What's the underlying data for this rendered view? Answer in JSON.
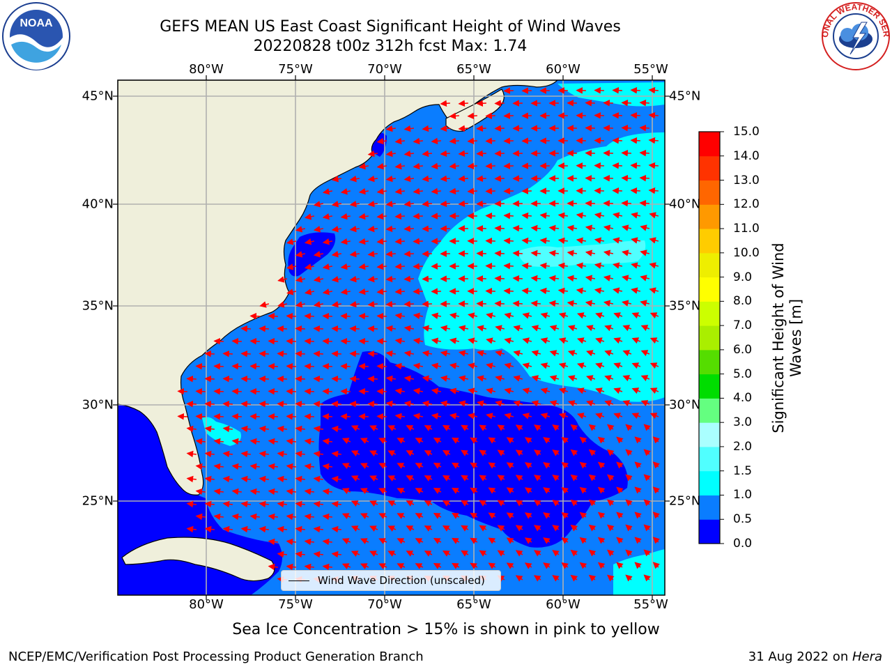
{
  "header": {
    "title_line1": "GEFS MEAN US East Coast Significant Height of Wind Waves",
    "title_line2": "20220828 t00z 312h fcst   Max: 1.74"
  },
  "logos": {
    "left": "noaa-logo-icon",
    "left_text": "NOAA",
    "right": "nws-logo-icon",
    "right_text": "NATIONAL WEATHER SERVICE"
  },
  "map": {
    "lon_labels": [
      "80°W",
      "75°W",
      "70°W",
      "65°W",
      "60°W",
      "55°W"
    ],
    "lat_labels": [
      "45°N",
      "40°N",
      "35°N",
      "30°N",
      "25°N"
    ],
    "legend_label": "Wind Wave Direction (unscaled)",
    "colors": {
      "land": "#efefdb",
      "grid": "#b0b0b0",
      "arrow": "#ff0000"
    }
  },
  "colorbar": {
    "title_line1": "Significant Height of Wind",
    "title_line2": "Waves [m]",
    "ticks": [
      "0.0",
      "0.5",
      "1.0",
      "1.5",
      "2.0",
      "3.0",
      "4.0",
      "5.0",
      "6.0",
      "7.0",
      "8.0",
      "9.0",
      "10.0",
      "11.0",
      "12.0",
      "13.0",
      "14.0",
      "15.0"
    ],
    "colors": [
      "#0000ff",
      "#0a7dff",
      "#00ffff",
      "#50ffff",
      "#aaffff",
      "#64ff80",
      "#00dd00",
      "#55dd00",
      "#aaee00",
      "#ccff00",
      "#ffff00",
      "#eeee00",
      "#ffcc00",
      "#ff9900",
      "#ff6600",
      "#ff3300",
      "#ff0000"
    ]
  },
  "footer": {
    "note": "Sea Ice Concentration > 15% is shown in pink to yellow",
    "left": "NCEP/EMC/Verification Post Processing Product Generation Branch",
    "right_prefix": "31 Aug 2022 on ",
    "right_machine": "Hera"
  }
}
